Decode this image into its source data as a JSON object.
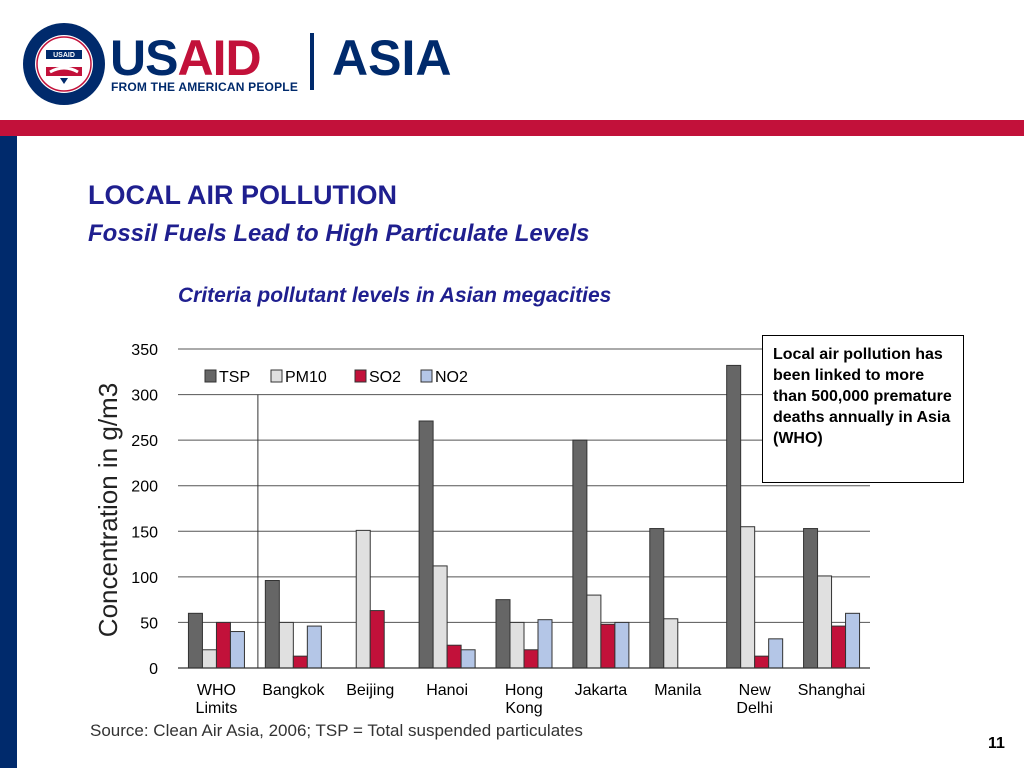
{
  "brand": {
    "seal_text": "UNITED STATES AGENCY · INTERNATIONAL DEVELOPMENT",
    "seal_center": "USAID",
    "name_us": "US",
    "name_aid": "AID",
    "region": "ASIA",
    "tagline": "FROM THE AMERICAN PEOPLE",
    "colors": {
      "navy": "#002a6c",
      "red": "#c2113a"
    }
  },
  "slide": {
    "title": "LOCAL AIR POLLUTION",
    "subtitle": "Fossil Fuels Lead to High Particulate Levels",
    "chart_title": "Criteria pollutant levels in Asian megacities",
    "note": "Local air pollution has been linked to more than 500,000 premature deaths annually in Asia (WHO)",
    "source": "Source: Clean Air Asia, 2006; TSP = Total suspended particulates",
    "page_number": "11"
  },
  "chart_data": {
    "type": "bar",
    "title": "",
    "ylabel": "Concentration in g/m3",
    "xlabel": "",
    "ylim": [
      0,
      350
    ],
    "yticks": [
      0,
      50,
      100,
      150,
      200,
      250,
      300,
      350
    ],
    "grid": true,
    "legend_position": "top-left",
    "categories": [
      "WHO Limits",
      "Bangkok",
      "Beijing",
      "Hanoi",
      "Hong Kong",
      "Jakarta",
      "Manila",
      "New Delhi",
      "Shanghai"
    ],
    "category_lines": [
      [
        "WHO",
        "Limits"
      ],
      [
        "Bangkok"
      ],
      [
        "Beijing"
      ],
      [
        "Hanoi"
      ],
      [
        "Hong",
        "Kong"
      ],
      [
        "Jakarta"
      ],
      [
        "Manila"
      ],
      [
        "New",
        "Delhi"
      ],
      [
        "Shanghai"
      ]
    ],
    "series": [
      {
        "name": "TSP",
        "color": "#666666",
        "values": [
          60,
          96,
          null,
          271,
          75,
          250,
          153,
          332,
          153
        ]
      },
      {
        "name": "PM10",
        "color": "#e0e0e0",
        "values": [
          20,
          50,
          151,
          112,
          50,
          80,
          54,
          155,
          101
        ]
      },
      {
        "name": "SO2",
        "color": "#c2113a",
        "values": [
          50,
          13,
          63,
          25,
          20,
          48,
          null,
          13,
          46
        ]
      },
      {
        "name": "NO2",
        "color": "#b4c6e7",
        "values": [
          40,
          46,
          null,
          20,
          53,
          50,
          null,
          32,
          60
        ]
      }
    ]
  }
}
